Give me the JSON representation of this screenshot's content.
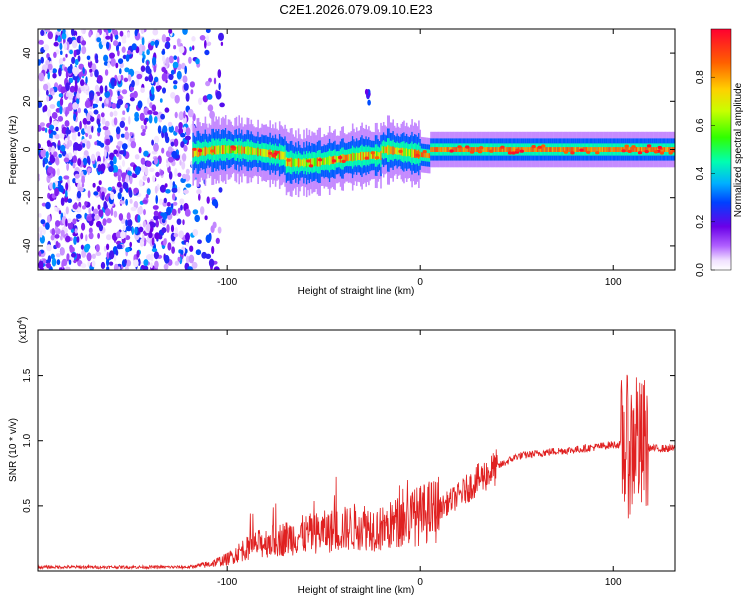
{
  "title": "C2E1.2026.079.09.10.E23",
  "colors": {
    "snr_line": "#e02020",
    "axis": "#000000"
  },
  "chart_data": [
    {
      "type": "heatmap",
      "xlabel": "Height of straight line (km)",
      "ylabel": "Frequency (Hz)",
      "xlim": [
        -198,
        132
      ],
      "ylim": [
        -50,
        50
      ],
      "x_ticks": [
        -100,
        0,
        100
      ],
      "x_tick_labels": [
        "-100",
        "0",
        "100"
      ],
      "y_ticks": [
        -40,
        -20,
        0,
        20,
        40
      ],
      "y_tick_labels": [
        "-40",
        "-20",
        "0",
        "20",
        "40"
      ],
      "colorbar": {
        "label": "Normalized spectral amplitude",
        "range": [
          0,
          1
        ],
        "ticks": [
          0.0,
          0.2,
          0.4,
          0.6,
          0.8
        ],
        "tick_labels": [
          "0.0",
          "0.2",
          "0.4",
          "0.6",
          "0.8"
        ],
        "colormap": "rainbow"
      },
      "features": [
        {
          "name": "noise",
          "x_range": [
            -198,
            -102
          ],
          "freq_range": [
            -50,
            50
          ],
          "amplitude": 0.15
        },
        {
          "name": "signal",
          "x_range": [
            -118,
            132
          ],
          "center_freq": 0,
          "half_width_hz": 4,
          "amplitude": 0.9
        },
        {
          "name": "blip",
          "x": -27,
          "freq": 22,
          "amplitude": 0.3
        }
      ]
    },
    {
      "type": "line",
      "xlabel": "Height of straight line (km)",
      "ylabel": "SNR (10 * v/v)",
      "y_multiplier_label": "(x10",
      "y_multiplier_exponent": "4",
      "y_multiplier_suffix": ")",
      "xlim": [
        -198,
        132
      ],
      "ylim": [
        0,
        18500
      ],
      "x_ticks": [
        -100,
        0,
        100
      ],
      "x_tick_labels": [
        "-100",
        "0",
        "100"
      ],
      "y_ticks": [
        5000,
        10000,
        15000
      ],
      "y_tick_labels": [
        "0.5",
        "1.0",
        "1.5"
      ],
      "series": [
        {
          "x": [
            -198,
            -150,
            -120,
            -110,
            -100,
            -90,
            -80,
            -70,
            -60,
            -50,
            -40,
            -30,
            -20,
            -10,
            0,
            10,
            20,
            30,
            40,
            50,
            60,
            70,
            80,
            90,
            100,
            105,
            110,
            112,
            114,
            116,
            120,
            132
          ],
          "values": [
            300,
            300,
            300,
            500,
            900,
            1800,
            2200,
            2500,
            2800,
            3000,
            3200,
            3500,
            3200,
            3800,
            4300,
            4800,
            5800,
            7000,
            8000,
            8800,
            9000,
            9200,
            9300,
            9500,
            9700,
            9700,
            9400,
            11000,
            9000,
            9600,
            9400,
            9400
          ]
        }
      ]
    }
  ]
}
